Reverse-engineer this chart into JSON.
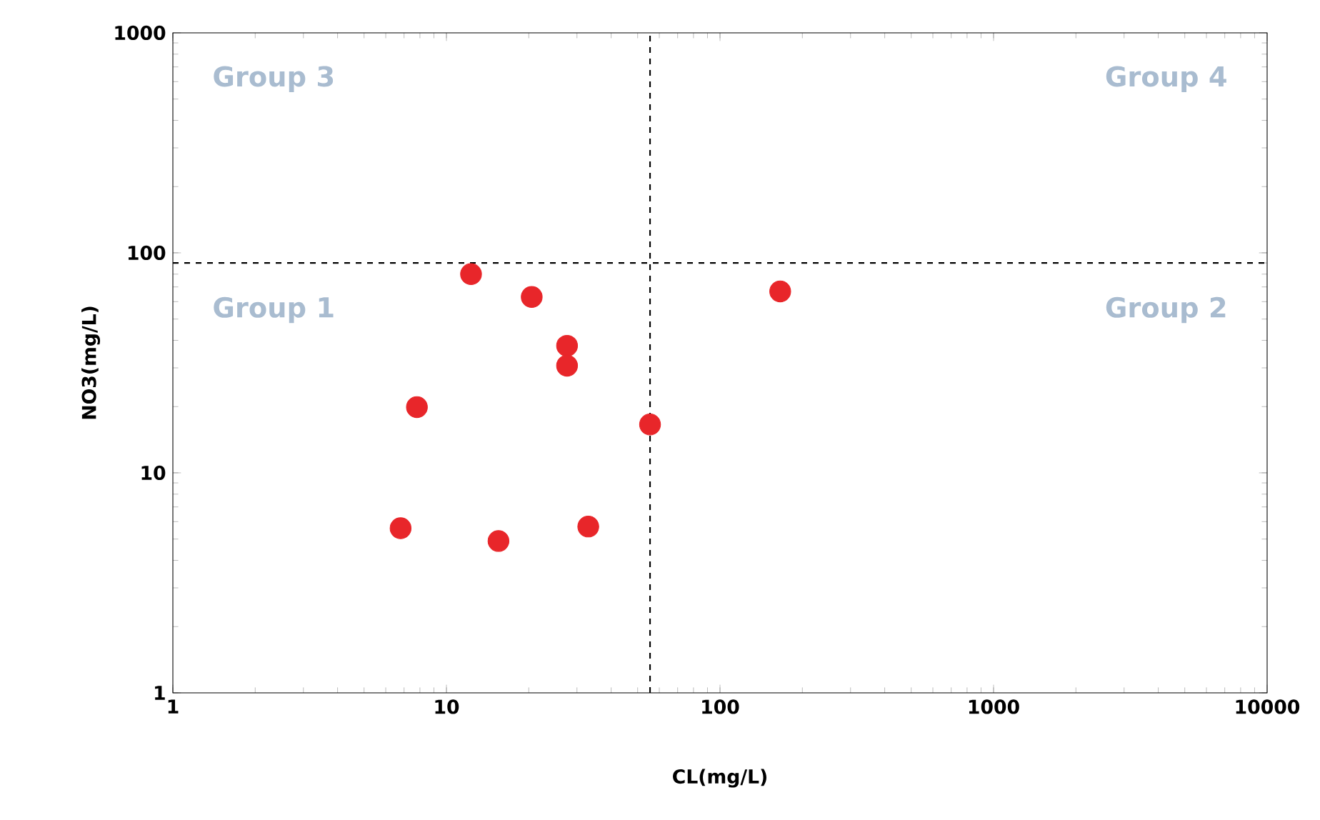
{
  "chart_data": {
    "type": "scatter",
    "xlabel": "CL(mg/L)",
    "ylabel": "NO3(mg/L)",
    "x": [
      12.3,
      20.5,
      27.6,
      27.6,
      7.8,
      55.5,
      166,
      6.8,
      15.5,
      33
    ],
    "values": [
      80,
      63,
      37.8,
      30.7,
      19.9,
      16.6,
      66.8,
      5.6,
      4.9,
      5.7
    ],
    "color": "#e8262a",
    "marker": "circle",
    "log": "xy",
    "grid": false,
    "xlim": [
      1,
      10000
    ],
    "ylim": [
      1,
      1000
    ],
    "xticks": [
      1,
      10,
      100,
      1000,
      10000
    ],
    "yticks": [
      1,
      10,
      100,
      1000
    ],
    "ref_lines": [
      {
        "axis": "x",
        "value": 55.5,
        "color": "#000000",
        "line_style": "dashed"
      },
      {
        "axis": "y",
        "value": 90,
        "color": "#000000",
        "line_style": "dashed"
      }
    ],
    "annotations": [
      "Group 3",
      "Group 4",
      "Group 1",
      "Group 2"
    ]
  }
}
